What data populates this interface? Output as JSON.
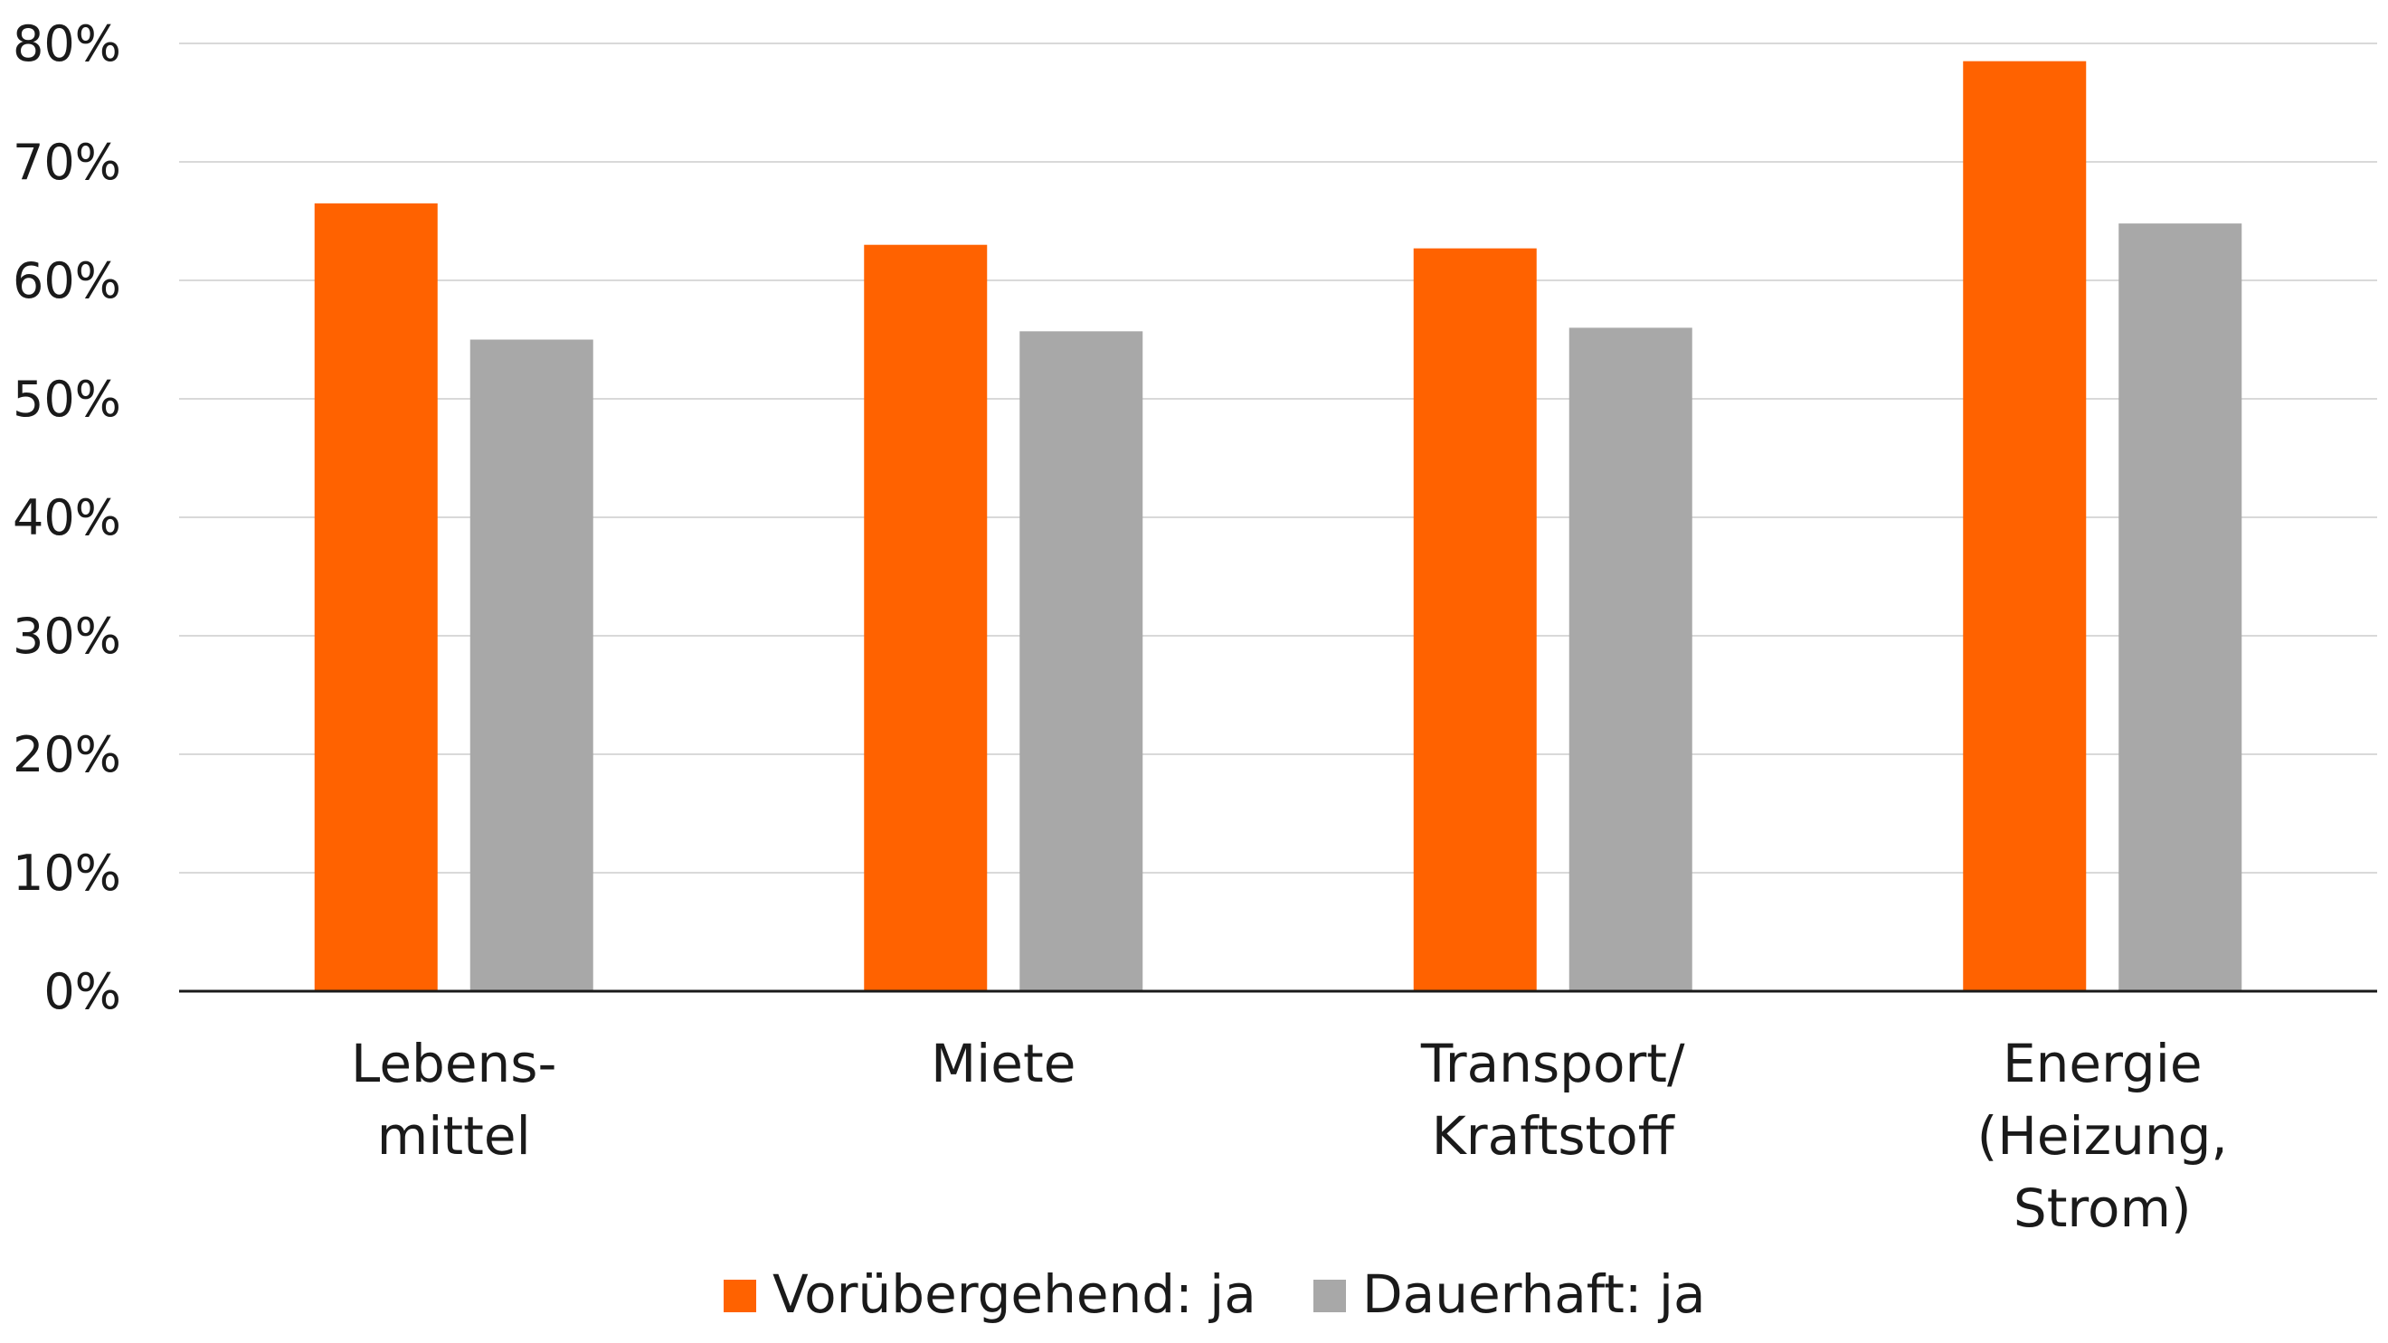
{
  "chart_data": {
    "type": "bar",
    "categories": [
      [
        "Lebens-",
        "mittel"
      ],
      [
        "Miete"
      ],
      [
        "Transport/",
        "Kraftstoff"
      ],
      [
        "Energie",
        "(Heizung,",
        "Strom)"
      ]
    ],
    "series": [
      {
        "name": "Vorübergehend: ja",
        "color": "#FF6200",
        "values": [
          66.5,
          63.0,
          62.7,
          78.5
        ]
      },
      {
        "name": "Dauerhaft: ja",
        "color": "#A8A8A8",
        "values": [
          55.0,
          55.7,
          56.0,
          64.8
        ]
      }
    ],
    "ylim": [
      0,
      80
    ],
    "yticks": [
      0,
      10,
      20,
      30,
      40,
      50,
      60,
      70,
      80
    ],
    "ytick_labels": [
      "0%",
      "10%",
      "20%",
      "30%",
      "40%",
      "50%",
      "60%",
      "70%",
      "80%"
    ],
    "grid": true,
    "legend_position": "bottom",
    "title": "",
    "xlabel": "",
    "ylabel": ""
  }
}
